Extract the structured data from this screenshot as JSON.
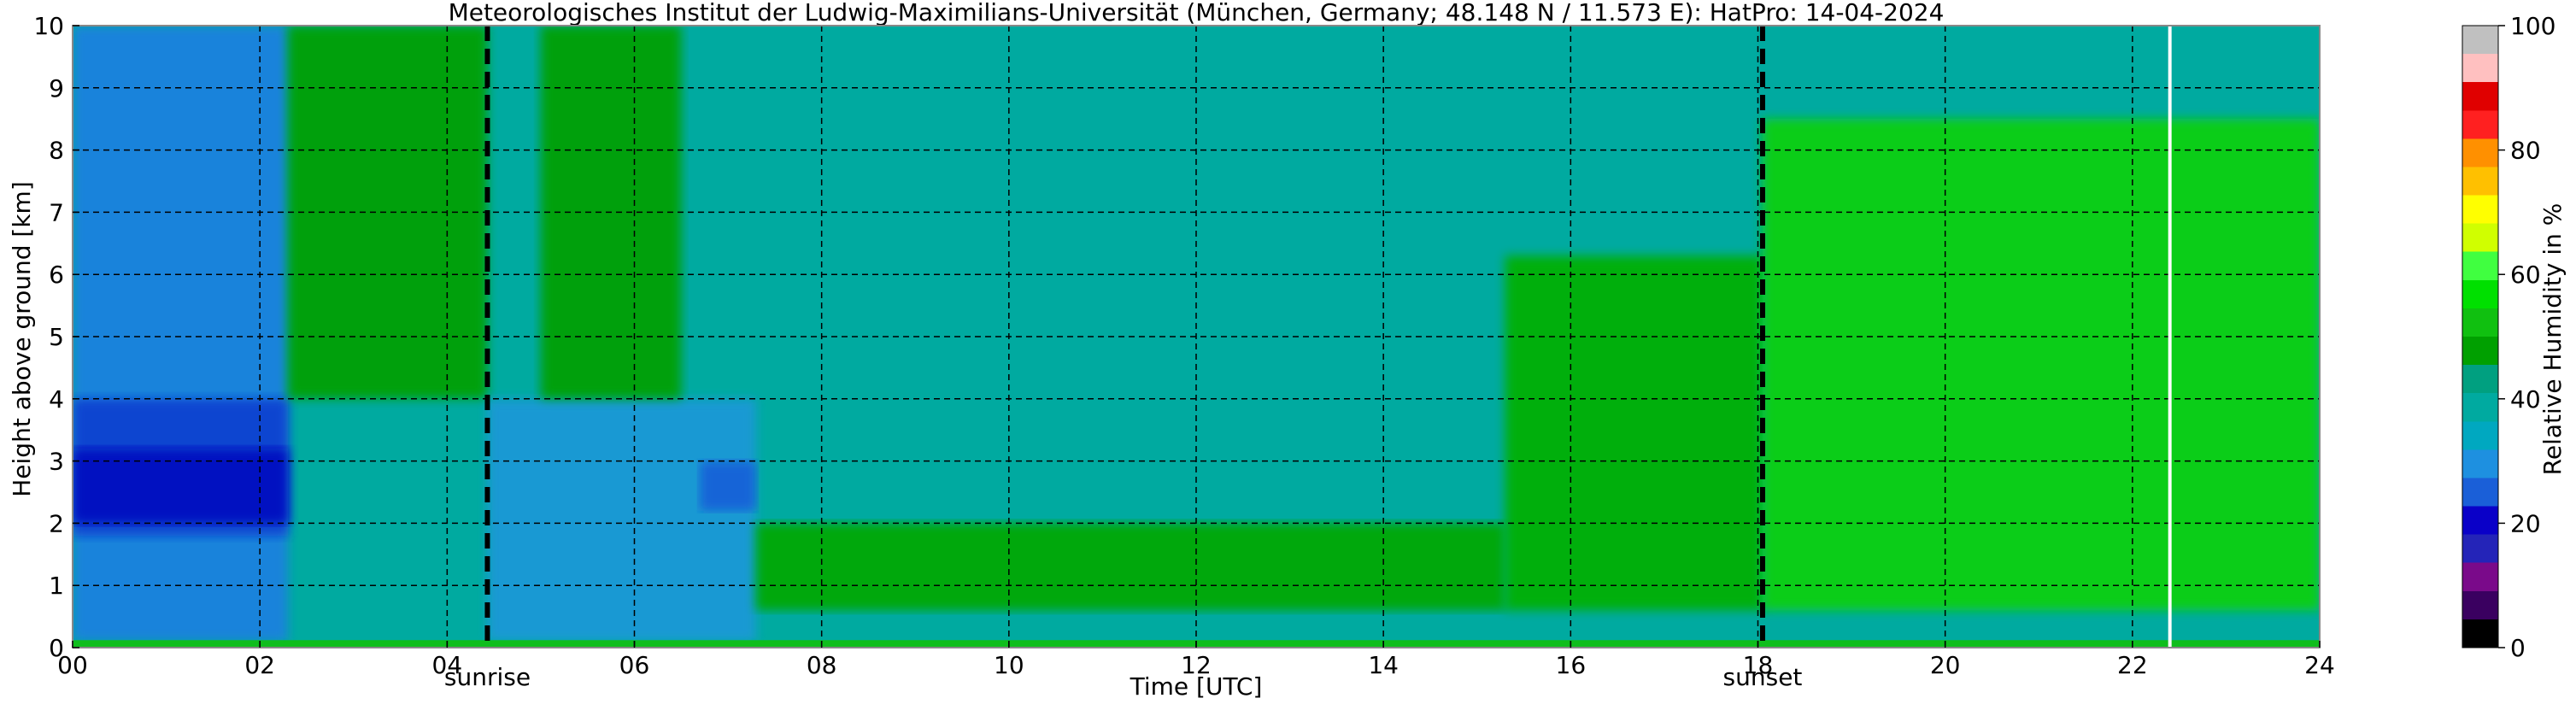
{
  "chart_data": {
    "type": "heatmap",
    "title": "Meteorologisches Institut der Ludwig-Maximilians-Universität (München, Germany; 48.148 N / 11.573 E):    HatPro: 14-04-2024",
    "xlabel": "Time [UTC]",
    "ylabel": "Height above ground [km]",
    "xlim": [
      0,
      24
    ],
    "ylim": [
      0,
      10
    ],
    "x_ticks": [
      "00",
      "02",
      "04",
      "06",
      "08",
      "10",
      "12",
      "14",
      "16",
      "18",
      "20",
      "22",
      "24"
    ],
    "y_ticks": [
      "0",
      "1",
      "2",
      "3",
      "4",
      "5",
      "6",
      "7",
      "8",
      "9",
      "10"
    ],
    "grid": true,
    "colorbar": {
      "label": "Relative Humidity in %",
      "range": [
        0,
        100
      ],
      "ticks": [
        "0",
        "20",
        "40",
        "60",
        "80",
        "100"
      ],
      "colors": [
        "#000000",
        "#3a0060",
        "#7a0a8a",
        "#2424b8",
        "#0a00c8",
        "#1a5fd8",
        "#1e90e0",
        "#00a8c0",
        "#00aaa0",
        "#00a080",
        "#00a000",
        "#10c010",
        "#00e000",
        "#40ff40",
        "#d0ff00",
        "#ffff00",
        "#ffc000",
        "#ff9000",
        "#ff2020",
        "#e00000",
        "#ffc0c0",
        "#c0c0c0"
      ]
    },
    "markers": [
      {
        "label": "sunrise",
        "x": 4.43
      },
      {
        "label": "sunset",
        "x": 18.05
      }
    ],
    "missing_data_line_x": 22.4,
    "regions": [
      {
        "x0": 0.0,
        "x1": 2.3,
        "y0": 0.1,
        "y1": 10.0,
        "rh": 24,
        "note_color": "#1a80e0"
      },
      {
        "x0": 0.0,
        "x1": 2.3,
        "y0": 1.8,
        "y1": 4.0,
        "rh": 17,
        "note_color": "#1040d0"
      },
      {
        "x0": 0.0,
        "x1": 2.3,
        "y0": 2.0,
        "y1": 3.2,
        "rh": 15,
        "note_color": "#0010c0"
      },
      {
        "x0": 2.3,
        "x1": 4.43,
        "y0": 4.0,
        "y1": 10.0,
        "rh": 45,
        "note_color": "#00a000"
      },
      {
        "x0": 4.43,
        "x1": 7.3,
        "y0": 0.1,
        "y1": 4.0,
        "rh": 28,
        "note_color": "#1e98d8"
      },
      {
        "x0": 5.0,
        "x1": 6.5,
        "y0": 4.0,
        "y1": 10.0,
        "rh": 45,
        "note_color": "#00a000"
      },
      {
        "x0": 6.7,
        "x1": 7.3,
        "y0": 2.2,
        "y1": 3.0,
        "rh": 22,
        "note_color": "#1560d8"
      },
      {
        "x0": 7.3,
        "x1": 15.3,
        "y0": 0.6,
        "y1": 2.0,
        "rh": 47,
        "note_color": "#00a800"
      },
      {
        "x0": 15.3,
        "x1": 18.05,
        "y0": 0.6,
        "y1": 6.3,
        "rh": 48,
        "note_color": "#00b000"
      },
      {
        "x0": 18.05,
        "x1": 24.0,
        "y0": 0.6,
        "y1": 8.5,
        "rh": 55,
        "note_color": "#10d010"
      },
      {
        "x0": 0.0,
        "x1": 24.0,
        "y0": 0.0,
        "y1": 0.12,
        "rh": 55,
        "note_color": "#10c010"
      }
    ]
  }
}
